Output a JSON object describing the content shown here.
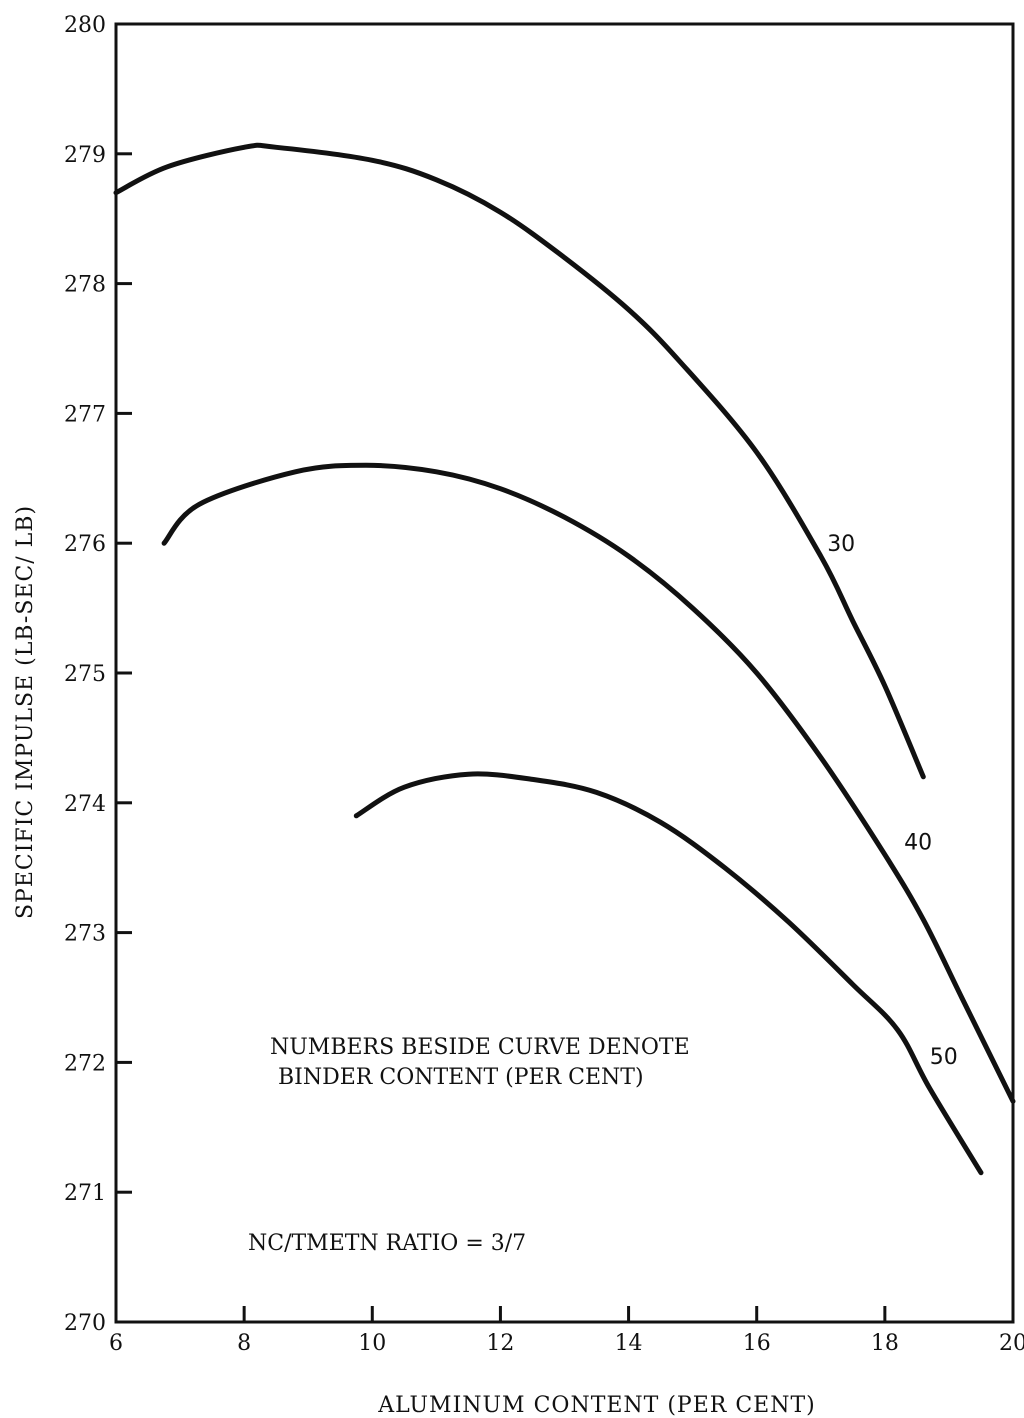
{
  "chart_data": {
    "type": "line",
    "xlabel": "ALUMINUM CONTENT (PER CENT)",
    "ylabel": "SPECIFIC IMPULSE (LB-SEC/ LB)",
    "xlim": [
      6,
      20
    ],
    "ylim": [
      270,
      280
    ],
    "x_ticks": [
      6,
      8,
      10,
      12,
      14,
      16,
      18,
      20
    ],
    "y_ticks": [
      270,
      271,
      272,
      273,
      274,
      275,
      276,
      277,
      278,
      279,
      280
    ],
    "grid": false,
    "series": [
      {
        "name": "30",
        "x": [
          6.0,
          6.8,
          8.0,
          8.5,
          10.0,
          11.0,
          12.0,
          13.0,
          14.0,
          14.8,
          16.0,
          17.0,
          17.5,
          18.0,
          18.6
        ],
        "y": [
          278.7,
          278.9,
          279.05,
          279.05,
          278.95,
          278.8,
          278.55,
          278.2,
          277.8,
          277.4,
          276.7,
          275.9,
          275.4,
          274.9,
          274.2
        ]
      },
      {
        "name": "40",
        "x": [
          6.75,
          7.3,
          8.8,
          9.9,
          11.0,
          12.0,
          13.0,
          14.0,
          15.0,
          16.0,
          17.0,
          18.0,
          18.6,
          19.2,
          20.0
        ],
        "y": [
          276.0,
          276.3,
          276.55,
          276.6,
          276.55,
          276.42,
          276.2,
          275.9,
          275.5,
          275.0,
          274.35,
          273.6,
          273.1,
          272.5,
          271.7
        ]
      },
      {
        "name": "50",
        "x": [
          9.75,
          10.5,
          11.5,
          12.5,
          13.5,
          14.5,
          15.5,
          16.5,
          17.5,
          18.2,
          18.7,
          19.5
        ],
        "y": [
          273.9,
          274.12,
          274.22,
          274.18,
          274.08,
          273.85,
          273.5,
          273.08,
          272.6,
          272.25,
          271.8,
          271.15
        ]
      }
    ],
    "annotations": [
      "NUMBERS BESIDE CURVE DENOTE",
      "BINDER CONTENT (PER CENT)",
      "NC/TMETN RATIO =  3/7"
    ]
  }
}
